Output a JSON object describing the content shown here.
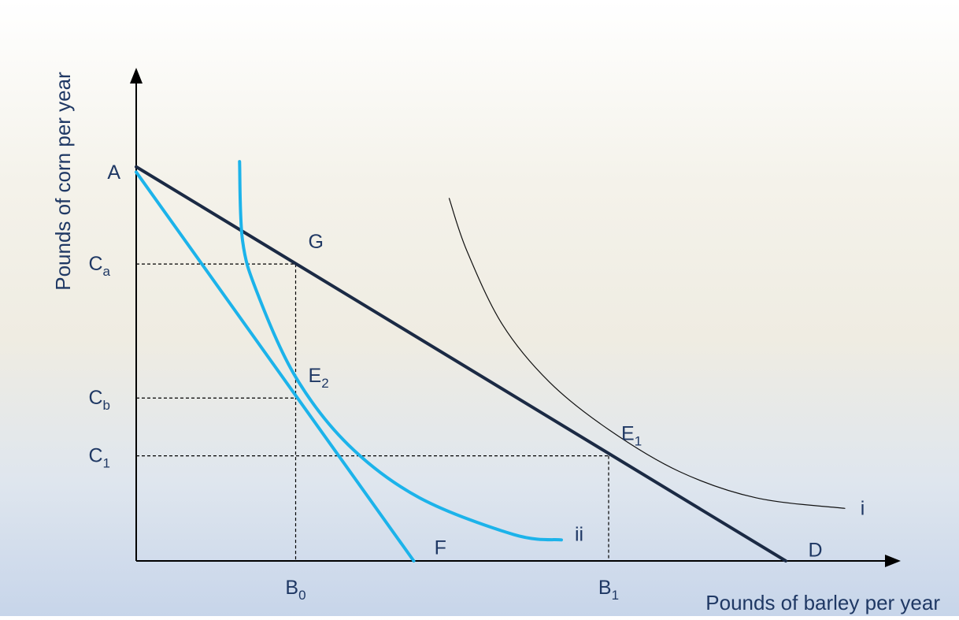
{
  "chart_data": {
    "type": "line",
    "title": "",
    "xlabel": "Pounds of barley per year",
    "ylabel": "Pounds of corn per year",
    "xlim": [
      0,
      11
    ],
    "ylim": [
      0,
      8.4
    ],
    "grid": false,
    "series": [
      {
        "name": "AD",
        "kind": "budget_line",
        "color": "#1b2a44",
        "points": [
          [
            0,
            7.5
          ],
          [
            11,
            0
          ]
        ]
      },
      {
        "name": "AF",
        "kind": "budget_line",
        "color": "#1cb3ea",
        "points": [
          [
            0,
            7.4
          ],
          [
            4.7,
            0
          ]
        ]
      },
      {
        "name": "i",
        "kind": "indifference_curve",
        "color": "#111111",
        "points": [
          [
            5.3,
            6.9
          ],
          [
            5.6,
            5.9
          ],
          [
            6.2,
            4.5
          ],
          [
            7.0,
            3.4
          ],
          [
            8.0,
            2.5
          ],
          [
            9.2,
            1.7
          ],
          [
            10.5,
            1.2
          ],
          [
            12.0,
            1.0
          ]
        ]
      },
      {
        "name": "ii",
        "kind": "indifference_curve",
        "color": "#1cb3ea",
        "points": [
          [
            1.75,
            7.6
          ],
          [
            1.8,
            6.1
          ],
          [
            2.05,
            5.1
          ],
          [
            2.7,
            3.5
          ],
          [
            3.6,
            2.2
          ],
          [
            4.8,
            1.2
          ],
          [
            6.4,
            0.5
          ],
          [
            7.2,
            0.4
          ]
        ]
      }
    ],
    "guides": [
      {
        "from": [
          0,
          5.65
        ],
        "to": [
          2.7,
          5.65
        ]
      },
      {
        "from": [
          2.7,
          5.65
        ],
        "to": [
          2.7,
          0
        ]
      },
      {
        "from": [
          0,
          3.1
        ],
        "to": [
          2.7,
          3.1
        ]
      },
      {
        "from": [
          0,
          2.0
        ],
        "to": [
          8.0,
          2.0
        ]
      },
      {
        "from": [
          8.0,
          2.0
        ],
        "to": [
          8.0,
          0
        ]
      }
    ],
    "points": [
      {
        "name": "A",
        "text": "A",
        "x": 0,
        "y": 7.5,
        "anchor": "left"
      },
      {
        "name": "G",
        "text": "G",
        "x": 2.7,
        "y": 5.65,
        "anchor": "above-right"
      },
      {
        "name": "E2",
        "text": "E",
        "sub": "2",
        "x": 2.7,
        "y": 3.1,
        "anchor": "above-right"
      },
      {
        "name": "E1",
        "text": "E",
        "sub": "1",
        "x": 8.0,
        "y": 2.0,
        "anchor": "above-right"
      },
      {
        "name": "F",
        "text": "F",
        "x": 5.15,
        "y": 0.25,
        "anchor": "center"
      },
      {
        "name": "D",
        "text": "D",
        "x": 11.5,
        "y": 0.2,
        "anchor": "center"
      },
      {
        "name": "ii",
        "text": "ii",
        "x": 7.5,
        "y": 0.5,
        "anchor": "center"
      },
      {
        "name": "i",
        "text": "i",
        "x": 12.3,
        "y": 1.0,
        "anchor": "center"
      }
    ],
    "x_ticks": [
      {
        "text": "B",
        "sub": "0",
        "x": 2.7
      },
      {
        "text": "B",
        "sub": "1",
        "x": 8.0
      }
    ],
    "y_ticks": [
      {
        "text": "C",
        "sub": "a",
        "y": 5.65
      },
      {
        "text": "C",
        "sub": "b",
        "y": 3.1
      },
      {
        "text": "C",
        "sub": "1",
        "y": 2.0
      }
    ]
  }
}
